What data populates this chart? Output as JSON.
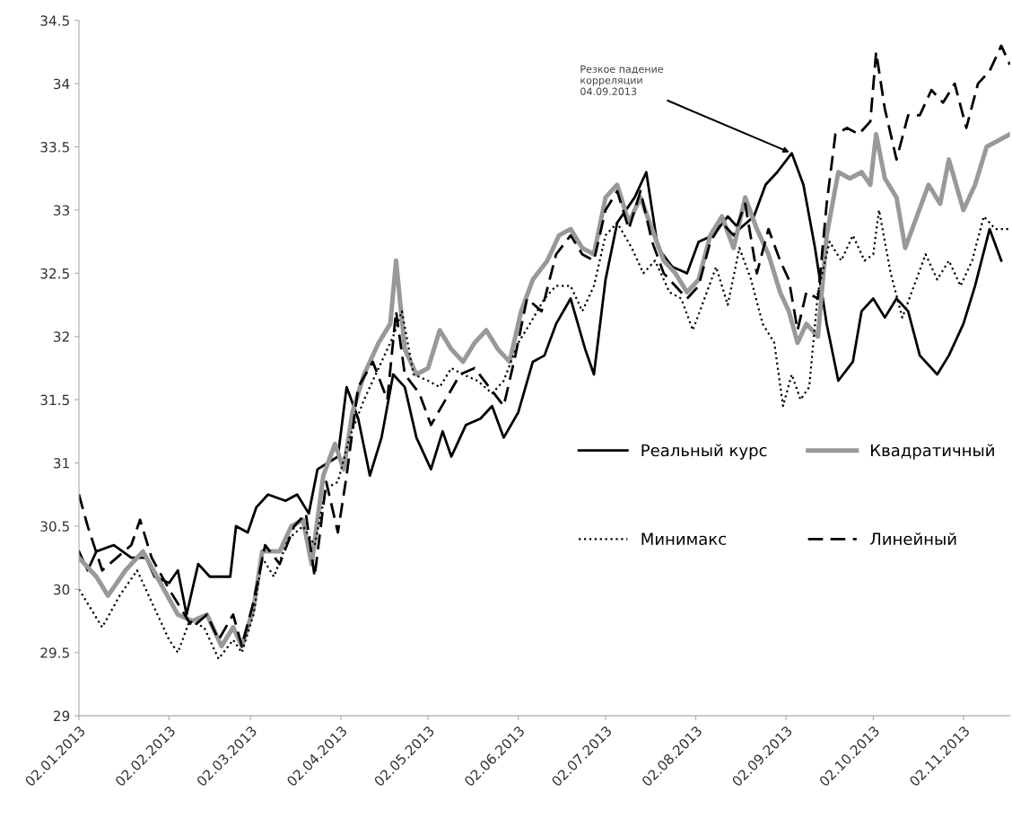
{
  "chart_data": {
    "type": "line",
    "annotations": [
      {
        "text": "Резкое падение\nкорреляции\n04.09.2013",
        "x": "2013-09-04",
        "y": 33.45
      }
    ],
    "ylim": [
      29,
      34.5
    ],
    "yticks": [
      29,
      29.5,
      30,
      30.5,
      31,
      31.5,
      32,
      32.5,
      33,
      33.5,
      34,
      34.5
    ],
    "xlim": [
      "2013-01-02",
      "2013-11-18"
    ],
    "xticks": [
      {
        "value": "2013-01-02",
        "label": "02.01.2013"
      },
      {
        "value": "2013-02-02",
        "label": "02.02.2013"
      },
      {
        "value": "2013-03-02",
        "label": "02.03.2013"
      },
      {
        "value": "2013-04-02",
        "label": "02.04.2013"
      },
      {
        "value": "2013-05-02",
        "label": "02.05.2013"
      },
      {
        "value": "2013-06-02",
        "label": "02.06.2013"
      },
      {
        "value": "2013-07-02",
        "label": "02.07.2013"
      },
      {
        "value": "2013-08-02",
        "label": "02.08.2013"
      },
      {
        "value": "2013-09-02",
        "label": "02.09.2013"
      },
      {
        "value": "2013-10-02",
        "label": "02.10.2013"
      },
      {
        "value": "2013-11-02",
        "label": "02.11.2013"
      }
    ],
    "grid": false,
    "legend": "lower right",
    "marker": "none",
    "series": [
      {
        "name": "Реальный курс",
        "color": "#000000",
        "line_style": "solid",
        "x": [
          "2013-01-02",
          "2013-01-05",
          "2013-01-08",
          "2013-01-14",
          "2013-01-20",
          "2013-01-25",
          "2013-01-28",
          "2013-02-02",
          "2013-02-05",
          "2013-02-08",
          "2013-02-12",
          "2013-02-16",
          "2013-02-20",
          "2013-02-23",
          "2013-02-25",
          "2013-03-01",
          "2013-03-04",
          "2013-03-08",
          "2013-03-14",
          "2013-03-18",
          "2013-03-22",
          "2013-03-25",
          "2013-04-01",
          "2013-04-04",
          "2013-04-08",
          "2013-04-12",
          "2013-04-16",
          "2013-04-20",
          "2013-04-24",
          "2013-04-28",
          "2013-05-03",
          "2013-05-07",
          "2013-05-10",
          "2013-05-15",
          "2013-05-20",
          "2013-05-24",
          "2013-05-28",
          "2013-06-02",
          "2013-06-07",
          "2013-06-11",
          "2013-06-15",
          "2013-06-20",
          "2013-06-25",
          "2013-06-28",
          "2013-07-02",
          "2013-07-06",
          "2013-07-12",
          "2013-07-16",
          "2013-07-20",
          "2013-07-25",
          "2013-07-30",
          "2013-08-03",
          "2013-08-08",
          "2013-08-13",
          "2013-08-17",
          "2013-08-22",
          "2013-08-26",
          "2013-08-30",
          "2013-09-04",
          "2013-09-08",
          "2013-09-12",
          "2013-09-16",
          "2013-09-20",
          "2013-09-25",
          "2013-09-28",
          "2013-10-02",
          "2013-10-06",
          "2013-10-10",
          "2013-10-14",
          "2013-10-18",
          "2013-10-24",
          "2013-10-28",
          "2013-11-02",
          "2013-11-06",
          "2013-11-11",
          "2013-11-15"
        ],
        "values": [
          30.3,
          30.15,
          30.3,
          30.35,
          30.25,
          30.25,
          30.1,
          30.05,
          30.15,
          29.8,
          30.2,
          30.1,
          30.1,
          30.1,
          30.5,
          30.45,
          30.65,
          30.75,
          30.7,
          30.75,
          30.6,
          30.95,
          31.05,
          31.6,
          31.35,
          30.9,
          31.2,
          31.7,
          31.6,
          31.2,
          30.95,
          31.25,
          31.05,
          31.3,
          31.35,
          31.45,
          31.2,
          31.4,
          31.8,
          31.85,
          32.1,
          32.3,
          31.9,
          31.7,
          32.45,
          32.9,
          33.1,
          33.3,
          32.7,
          32.55,
          32.5,
          32.75,
          32.8,
          32.95,
          32.85,
          32.95,
          33.2,
          33.3,
          33.45,
          33.2,
          32.7,
          32.1,
          31.65,
          31.8,
          32.2,
          32.3,
          32.15,
          32.3,
          32.2,
          31.85,
          31.7,
          31.85,
          32.1,
          32.4,
          32.85,
          32.6
        ]
      },
      {
        "name": "Квадратичный",
        "color": "#999999",
        "line_style": "solid",
        "x": [
          "2013-01-02",
          "2013-01-08",
          "2013-01-12",
          "2013-01-18",
          "2013-01-24",
          "2013-01-30",
          "2013-02-05",
          "2013-02-10",
          "2013-02-15",
          "2013-02-20",
          "2013-02-24",
          "2013-02-27",
          "2013-03-03",
          "2013-03-06",
          "2013-03-12",
          "2013-03-16",
          "2013-03-20",
          "2013-03-23",
          "2013-03-27",
          "2013-03-31",
          "2013-04-03",
          "2013-04-06",
          "2013-04-10",
          "2013-04-15",
          "2013-04-19",
          "2013-04-21",
          "2013-04-24",
          "2013-04-28",
          "2013-05-02",
          "2013-05-06",
          "2013-05-10",
          "2013-05-14",
          "2013-05-18",
          "2013-05-22",
          "2013-05-26",
          "2013-05-30",
          "2013-06-03",
          "2013-06-07",
          "2013-06-12",
          "2013-06-16",
          "2013-06-20",
          "2013-06-24",
          "2013-06-28",
          "2013-07-02",
          "2013-07-06",
          "2013-07-10",
          "2013-07-14",
          "2013-07-18",
          "2013-07-22",
          "2013-07-26",
          "2013-07-30",
          "2013-08-03",
          "2013-08-07",
          "2013-08-11",
          "2013-08-15",
          "2013-08-19",
          "2013-08-23",
          "2013-08-27",
          "2013-08-31",
          "2013-09-03",
          "2013-09-06",
          "2013-09-09",
          "2013-09-13",
          "2013-09-16",
          "2013-09-20",
          "2013-09-24",
          "2013-09-28",
          "2013-10-01",
          "2013-10-03",
          "2013-10-06",
          "2013-10-10",
          "2013-10-13",
          "2013-10-17",
          "2013-10-21",
          "2013-10-25",
          "2013-10-28",
          "2013-11-02",
          "2013-11-06",
          "2013-11-10",
          "2013-11-14",
          "2013-11-18"
        ],
        "values": [
          30.25,
          30.1,
          29.95,
          30.15,
          30.3,
          30.05,
          29.8,
          29.75,
          29.8,
          29.55,
          29.7,
          29.55,
          29.85,
          30.3,
          30.3,
          30.5,
          30.55,
          30.2,
          30.9,
          31.15,
          30.95,
          31.4,
          31.7,
          31.95,
          32.1,
          32.6,
          31.9,
          31.7,
          31.75,
          32.05,
          31.9,
          31.8,
          31.95,
          32.05,
          31.9,
          31.8,
          32.2,
          32.45,
          32.6,
          32.8,
          32.85,
          32.7,
          32.65,
          33.1,
          33.2,
          32.9,
          33.1,
          32.85,
          32.6,
          32.5,
          32.35,
          32.45,
          32.8,
          32.95,
          32.7,
          33.1,
          32.85,
          32.65,
          32.35,
          32.2,
          31.95,
          32.1,
          32.0,
          32.8,
          33.3,
          33.25,
          33.3,
          33.2,
          33.6,
          33.25,
          33.1,
          32.7,
          32.95,
          33.2,
          33.05,
          33.4,
          33.0,
          33.2,
          33.5,
          33.55,
          33.6
        ]
      },
      {
        "name": "Минимакс",
        "color": "#000000",
        "line_style": "dotted",
        "x": [
          "2013-01-02",
          "2013-01-06",
          "2013-01-10",
          "2013-01-16",
          "2013-01-22",
          "2013-01-27",
          "2013-02-02",
          "2013-02-05",
          "2013-02-09",
          "2013-02-14",
          "2013-02-19",
          "2013-02-24",
          "2013-02-27",
          "2013-03-03",
          "2013-03-06",
          "2013-03-10",
          "2013-03-15",
          "2013-03-20",
          "2013-03-24",
          "2013-03-28",
          "2013-04-01",
          "2013-04-05",
          "2013-04-10",
          "2013-04-15",
          "2013-04-20",
          "2013-04-23",
          "2013-04-27",
          "2013-05-02",
          "2013-05-06",
          "2013-05-10",
          "2013-05-14",
          "2013-05-19",
          "2013-05-24",
          "2013-05-28",
          "2013-06-02",
          "2013-06-06",
          "2013-06-11",
          "2013-06-15",
          "2013-06-20",
          "2013-06-24",
          "2013-06-28",
          "2013-07-02",
          "2013-07-06",
          "2013-07-11",
          "2013-07-15",
          "2013-07-19",
          "2013-07-24",
          "2013-07-28",
          "2013-08-01",
          "2013-08-05",
          "2013-08-09",
          "2013-08-13",
          "2013-08-17",
          "2013-08-21",
          "2013-08-25",
          "2013-08-29",
          "2013-09-01",
          "2013-09-04",
          "2013-09-07",
          "2013-09-10",
          "2013-09-13",
          "2013-09-17",
          "2013-09-21",
          "2013-09-25",
          "2013-09-29",
          "2013-10-02",
          "2013-10-04",
          "2013-10-08",
          "2013-10-12",
          "2013-10-16",
          "2013-10-20",
          "2013-10-24",
          "2013-10-28",
          "2013-11-01",
          "2013-11-05",
          "2013-11-09",
          "2013-11-13",
          "2013-11-18"
        ],
        "values": [
          30.0,
          29.85,
          29.7,
          29.95,
          30.15,
          29.9,
          29.6,
          29.5,
          29.75,
          29.7,
          29.45,
          29.6,
          29.5,
          29.8,
          30.25,
          30.1,
          30.4,
          30.5,
          30.35,
          30.8,
          30.85,
          31.2,
          31.5,
          31.75,
          32.0,
          32.2,
          31.7,
          31.65,
          31.6,
          31.75,
          31.7,
          31.65,
          31.55,
          31.65,
          31.95,
          32.1,
          32.3,
          32.4,
          32.4,
          32.2,
          32.4,
          32.8,
          32.9,
          32.7,
          32.5,
          32.6,
          32.35,
          32.3,
          32.05,
          32.3,
          32.55,
          32.25,
          32.7,
          32.45,
          32.1,
          31.95,
          31.45,
          31.7,
          31.5,
          31.6,
          32.35,
          32.75,
          32.6,
          32.8,
          32.6,
          32.65,
          33.0,
          32.5,
          32.15,
          32.4,
          32.65,
          32.45,
          32.6,
          32.4,
          32.6,
          32.95,
          32.85,
          32.85
        ]
      },
      {
        "name": "Линейный",
        "color": "#000000",
        "line_style": "dashed",
        "x": [
          "2013-01-02",
          "2013-01-05",
          "2013-01-10",
          "2013-01-15",
          "2013-01-20",
          "2013-01-23",
          "2013-01-27",
          "2013-02-02",
          "2013-02-06",
          "2013-02-10",
          "2013-02-15",
          "2013-02-19",
          "2013-02-24",
          "2013-02-27",
          "2013-03-03",
          "2013-03-07",
          "2013-03-12",
          "2013-03-17",
          "2013-03-21",
          "2013-03-24",
          "2013-03-28",
          "2013-04-01",
          "2013-04-04",
          "2013-04-08",
          "2013-04-13",
          "2013-04-18",
          "2013-04-21",
          "2013-04-24",
          "2013-04-29",
          "2013-05-03",
          "2013-05-08",
          "2013-05-13",
          "2013-05-18",
          "2013-05-23",
          "2013-05-28",
          "2013-06-01",
          "2013-06-05",
          "2013-06-10",
          "2013-06-15",
          "2013-06-20",
          "2013-06-24",
          "2013-06-28",
          "2013-07-02",
          "2013-07-06",
          "2013-07-10",
          "2013-07-14",
          "2013-07-18",
          "2013-07-22",
          "2013-07-26",
          "2013-07-30",
          "2013-08-03",
          "2013-08-07",
          "2013-08-11",
          "2013-08-15",
          "2013-08-19",
          "2013-08-23",
          "2013-08-27",
          "2013-08-31",
          "2013-09-03",
          "2013-09-06",
          "2013-09-09",
          "2013-09-13",
          "2013-09-16",
          "2013-09-19",
          "2013-09-23",
          "2013-09-27",
          "2013-10-01",
          "2013-10-03",
          "2013-10-06",
          "2013-10-10",
          "2013-10-14",
          "2013-10-18",
          "2013-10-22",
          "2013-10-26",
          "2013-10-30",
          "2013-11-03",
          "2013-11-07",
          "2013-11-11",
          "2013-11-15",
          "2013-11-18"
        ],
        "values": [
          30.75,
          30.5,
          30.15,
          30.25,
          30.35,
          30.55,
          30.25,
          30.0,
          29.85,
          29.7,
          29.8,
          29.6,
          29.8,
          29.55,
          29.9,
          30.35,
          30.2,
          30.5,
          30.6,
          30.1,
          30.85,
          30.45,
          30.9,
          31.6,
          31.8,
          31.5,
          32.2,
          31.7,
          31.55,
          31.3,
          31.5,
          31.7,
          31.75,
          31.6,
          31.45,
          31.85,
          32.3,
          32.2,
          32.65,
          32.8,
          32.65,
          32.6,
          33.0,
          33.15,
          32.85,
          33.15,
          32.75,
          32.5,
          32.4,
          32.3,
          32.4,
          32.75,
          32.9,
          32.8,
          33.05,
          32.5,
          32.85,
          32.6,
          32.45,
          32.05,
          32.35,
          32.3,
          33.05,
          33.6,
          33.65,
          33.6,
          33.7,
          34.25,
          33.8,
          33.4,
          33.75,
          33.75,
          33.95,
          33.85,
          34.0,
          33.65,
          34.0,
          34.1,
          34.3,
          34.15
        ]
      }
    ]
  }
}
